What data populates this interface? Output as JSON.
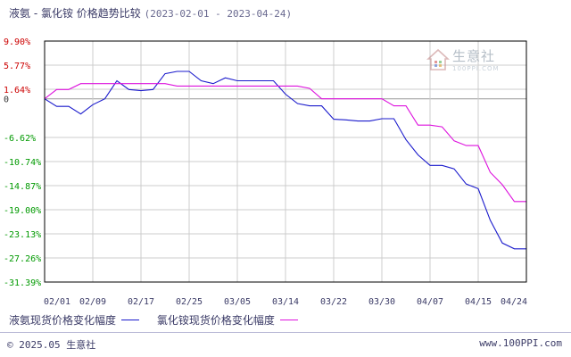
{
  "title": {
    "main": "液氨 - 氯化铵 价格趋势比较",
    "range": "(2023-02-01 - 2023-04-24)"
  },
  "watermark": {
    "cn": "生意社",
    "en": "100PPI.COM"
  },
  "footer": {
    "left": "© 2025.05 生意社",
    "right": "www.100PPI.com"
  },
  "colors": {
    "series1": "#1a1acc",
    "series2": "#dd11dd",
    "axis_text_red": "#cc0000",
    "axis_text_green": "#009900",
    "grid": "#cccccc"
  },
  "chart_data": {
    "type": "line",
    "y_ticks": [
      "9.90%",
      "5.77%",
      "1.64%",
      "0",
      "-6.62%",
      "-10.74%",
      "-14.87%",
      "-19.00%",
      "-23.13%",
      "-27.26%",
      "-31.39%"
    ],
    "y_tick_values": [
      9.9,
      5.77,
      1.64,
      0,
      -6.62,
      -10.74,
      -14.87,
      -19.0,
      -23.13,
      -27.26,
      -31.39
    ],
    "ylim": [
      -31.39,
      9.9
    ],
    "x_ticks": [
      "02/01",
      "02/09",
      "02/17",
      "02/25",
      "03/05",
      "03/14",
      "03/22",
      "03/30",
      "04/07",
      "04/15",
      "04/24"
    ],
    "x": [
      "02/01",
      "02/03",
      "02/05",
      "02/07",
      "02/09",
      "02/11",
      "02/13",
      "02/15",
      "02/17",
      "02/19",
      "02/21",
      "02/23",
      "02/25",
      "02/27",
      "03/01",
      "03/03",
      "03/05",
      "03/07",
      "03/09",
      "03/11",
      "03/14",
      "03/16",
      "03/18",
      "03/20",
      "03/22",
      "03/24",
      "03/26",
      "03/28",
      "03/30",
      "04/01",
      "04/03",
      "04/05",
      "04/07",
      "04/09",
      "04/11",
      "04/13",
      "04/15",
      "04/17",
      "04/19",
      "04/21",
      "04/24"
    ],
    "series": [
      {
        "name": "液氨现货价格变化幅度",
        "color": "#1a1acc",
        "values": [
          0.0,
          -1.3,
          -1.3,
          -2.6,
          -1.0,
          0.0,
          3.1,
          1.6,
          1.4,
          1.6,
          4.3,
          4.7,
          4.7,
          3.1,
          2.6,
          3.6,
          3.1,
          3.1,
          3.1,
          3.1,
          0.8,
          -0.8,
          -1.2,
          -1.2,
          -3.5,
          -3.6,
          -3.8,
          -3.8,
          -3.4,
          -3.4,
          -7.0,
          -9.6,
          -11.4,
          -11.4,
          -12.0,
          -14.6,
          -15.4,
          -20.8,
          -24.7,
          -25.7,
          -25.7
        ]
      },
      {
        "name": "氯化铵现货价格变化幅度",
        "color": "#dd11dd",
        "values": [
          0.0,
          1.6,
          1.6,
          2.6,
          2.6,
          2.6,
          2.6,
          2.6,
          2.6,
          2.6,
          2.6,
          2.2,
          2.2,
          2.2,
          2.2,
          2.2,
          2.2,
          2.2,
          2.2,
          2.2,
          2.2,
          2.2,
          1.8,
          0.0,
          0.0,
          0.0,
          0.0,
          0.0,
          0.0,
          -1.2,
          -1.2,
          -4.5,
          -4.5,
          -4.8,
          -7.2,
          -8.0,
          -8.0,
          -12.6,
          -14.7,
          -17.6,
          -17.6
        ]
      }
    ]
  }
}
